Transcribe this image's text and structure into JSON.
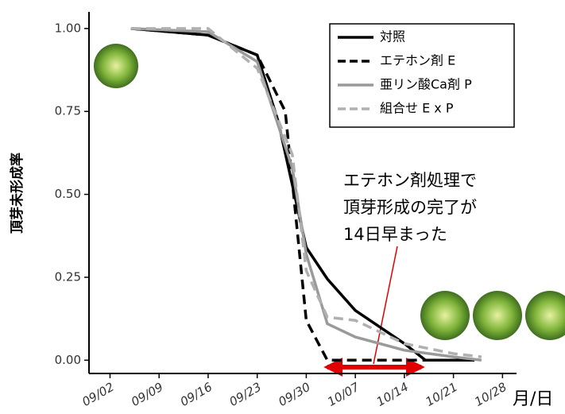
{
  "chart_data": {
    "type": "line",
    "y_label": "頂芽未形成率",
    "x_label": "月/日",
    "annotation": [
      "エテホン剤処理で",
      "頂芽形成の完了が",
      "14日早まった"
    ],
    "xlim": [
      "08/30",
      "10/30"
    ],
    "xticks": [
      "09/02",
      "09/09",
      "09/16",
      "09/23",
      "09/30",
      "10/07",
      "10/14",
      "10/21",
      "10/28"
    ],
    "ylim": [
      -0.04,
      1.05
    ],
    "yticks": [
      {
        "value": 0,
        "label": "0.00"
      },
      {
        "value": 0.25,
        "label": "0.25"
      },
      {
        "value": 0.5,
        "label": "0.50"
      },
      {
        "value": 0.75,
        "label": "0.75"
      },
      {
        "value": 1,
        "label": "1.00"
      }
    ],
    "series": [
      {
        "name": "対照",
        "color": "#000000",
        "dash": false,
        "x": [
          "09/05",
          "09/16",
          "09/23",
          "09/26",
          "09/30",
          "10/03",
          "10/07",
          "10/14",
          "10/17",
          "10/24"
        ],
        "values": [
          1.0,
          0.98,
          0.92,
          0.72,
          0.34,
          0.245,
          0.15,
          0.05,
          0.0,
          0.0
        ]
      },
      {
        "name": "エテホン剤 E",
        "color": "#000000",
        "dash": true,
        "x": [
          "09/05",
          "09/16",
          "09/23",
          "09/27",
          "09/30",
          "10/03",
          "10/17"
        ],
        "values": [
          1.0,
          0.98,
          0.92,
          0.75,
          0.12,
          0.0,
          0.0
        ]
      },
      {
        "name": "亜リン酸Ca剤 P",
        "color": "#9a9a9a",
        "dash": false,
        "x": [
          "09/05",
          "09/16",
          "09/23",
          "09/28",
          "09/30",
          "10/03",
          "10/07",
          "10/14",
          "10/21",
          "10/25"
        ],
        "values": [
          1.0,
          0.99,
          0.9,
          0.58,
          0.32,
          0.11,
          0.07,
          0.03,
          0.01,
          0.0
        ]
      },
      {
        "name": "組合せ E x P",
        "color": "#b0b0b0",
        "dash": true,
        "x": [
          "09/05",
          "09/16",
          "09/23",
          "09/28",
          "09/30",
          "10/03",
          "10/07",
          "10/14",
          "10/21",
          "10/25"
        ],
        "values": [
          1.0,
          1.0,
          0.88,
          0.62,
          0.27,
          0.13,
          0.12,
          0.05,
          0.02,
          0.01
        ]
      }
    ]
  }
}
